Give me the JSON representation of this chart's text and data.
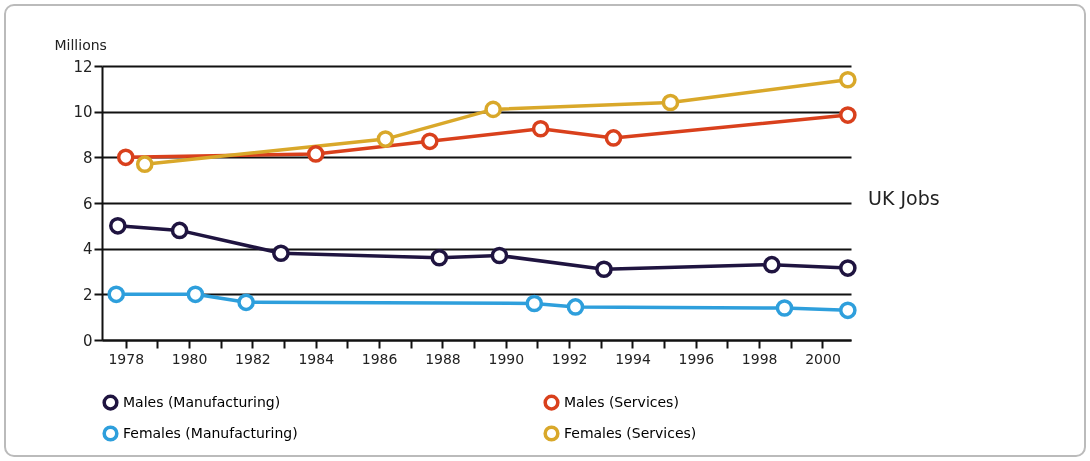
{
  "chart_data": {
    "type": "line",
    "ylabel": "Millions",
    "annotations": [
      "UK Jobs"
    ],
    "xlim": [
      1977.25,
      2000.9
    ],
    "xticks": [
      1978,
      {
        "value": 1979,
        "label": null
      },
      1980,
      {
        "value": 1981,
        "label": null
      },
      1982,
      {
        "value": 1983,
        "label": null
      },
      1984,
      {
        "value": 1985,
        "label": null
      },
      1986,
      {
        "value": 1987,
        "label": null
      },
      1988,
      {
        "value": 1989,
        "label": null
      },
      1990,
      {
        "value": 1991,
        "label": null
      },
      1992,
      {
        "value": 1993,
        "label": null
      },
      1994,
      {
        "value": 1995,
        "label": null
      },
      1996,
      {
        "value": 1997,
        "label": null
      },
      1998,
      {
        "value": 1999,
        "label": null
      },
      2000
    ],
    "ylim": [
      0,
      12
    ],
    "yticks": [
      0,
      2,
      4,
      6,
      8,
      10,
      12
    ],
    "grid": "y",
    "legend": "bottom",
    "marker": "circle",
    "line_style": "solid",
    "series": [
      {
        "name": "Males (Manufacturing)",
        "color": "#1f1440",
        "x": [
          1977.75,
          1979.7,
          1982.9,
          1987.9,
          1989.8,
          1993.1,
          1998.4,
          2000.8
        ],
        "values": [
          5.0,
          4.8,
          3.8,
          3.6,
          3.7,
          3.1,
          3.3,
          3.15
        ]
      },
      {
        "name": "Males (Services)",
        "color": "#d9401c",
        "x": [
          1978.0,
          1984.0,
          1987.6,
          1991.1,
          1993.4,
          2000.8
        ],
        "values": [
          8.0,
          8.15,
          8.7,
          9.25,
          8.85,
          9.85
        ]
      },
      {
        "name": "Females (Manufacturing)",
        "color": "#2e9fdc",
        "x": [
          1977.7,
          1980.2,
          1981.8,
          1990.9,
          1992.2,
          1998.8,
          2000.8
        ],
        "values": [
          2.0,
          2.0,
          1.65,
          1.6,
          1.45,
          1.4,
          1.3
        ]
      },
      {
        "name": "Females (Services)",
        "color": "#d9a82a",
        "x": [
          1978.6,
          1986.2,
          1989.6,
          1995.2,
          2000.8
        ],
        "values": [
          7.7,
          8.8,
          10.1,
          10.4,
          11.4
        ]
      }
    ]
  }
}
